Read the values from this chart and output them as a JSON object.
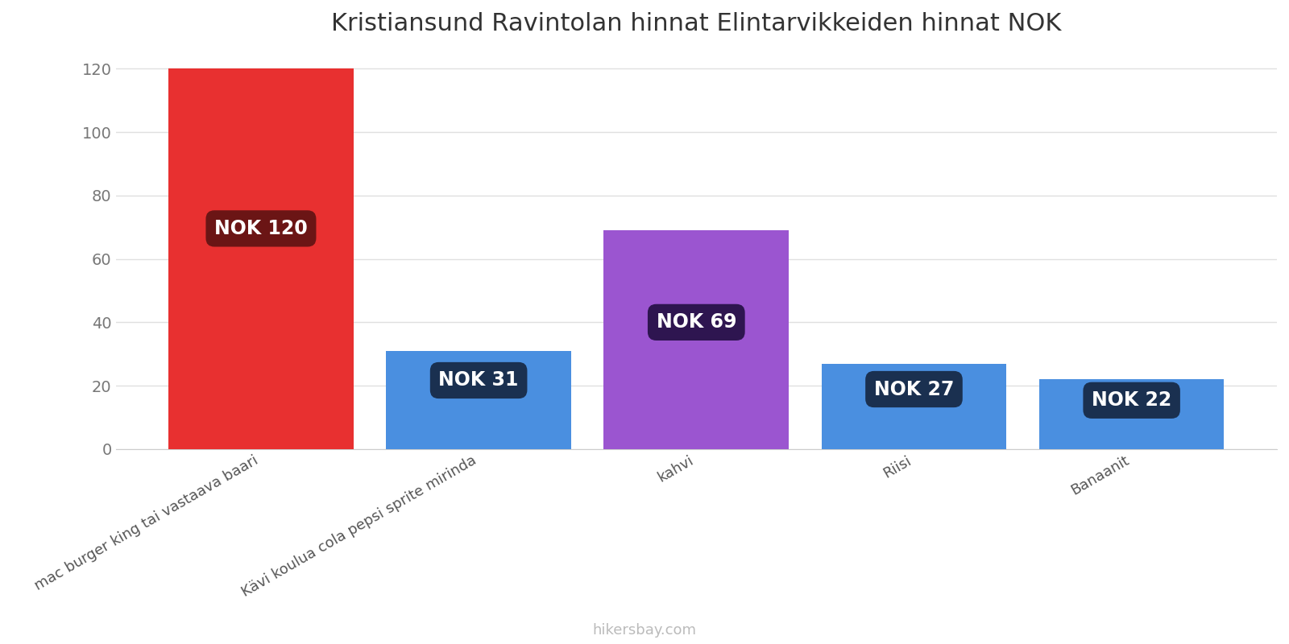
{
  "title": "Kristiansund Ravintolan hinnat Elintarvikkeiden hinnat NOK",
  "categories": [
    "mac burger king tai vastaava baari",
    "Kävi koulua cola pepsi sprite mirinda",
    "kahvi",
    "Riisi",
    "Banaanit"
  ],
  "values": [
    120,
    31,
    69,
    27,
    22
  ],
  "bar_colors": [
    "#e83030",
    "#4a8fe0",
    "#9b55d0",
    "#4a8fe0",
    "#4a8fe0"
  ],
  "label_box_colors": [
    "#6b1515",
    "#1a3050",
    "#2e1550",
    "#1a3050",
    "#1a3050"
  ],
  "labels": [
    "NOK 120",
    "NOK 31",
    "NOK 69",
    "NOK 27",
    "NOK 22"
  ],
  "ylim": [
    0,
    125
  ],
  "yticks": [
    0,
    20,
    40,
    60,
    80,
    100,
    120
  ],
  "title_fontsize": 22,
  "tick_fontsize": 14,
  "label_fontsize": 17,
  "xlabel_fontsize": 13,
  "watermark": "hikersbay.com",
  "background_color": "#ffffff",
  "grid_color": "#e0e0e0"
}
